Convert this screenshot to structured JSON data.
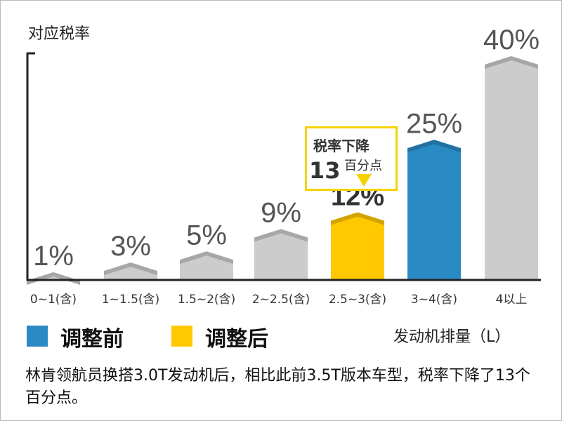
{
  "chart_data": {
    "type": "bar",
    "ylabel": "对应税率",
    "xlabel": "发动机排量（L）",
    "ylim": [
      0,
      40
    ],
    "categories": [
      "0~1(含)",
      "1~1.5(含)",
      "1.5~2(含)",
      "2~2.5(含)",
      "2.5~3(含)",
      "3~4(含)",
      "4以上"
    ],
    "values": [
      1,
      3,
      5,
      9,
      12,
      25,
      40
    ],
    "value_labels": [
      "1%",
      "3%",
      "5%",
      "9%",
      "12%",
      "25%",
      "40%"
    ],
    "legend": [
      {
        "label": "调整前",
        "color": "#2a8ac4"
      },
      {
        "label": "调整后",
        "color": "#ffc800"
      }
    ],
    "bar_colors": [
      "#cccccc",
      "#cccccc",
      "#cccccc",
      "#cccccc",
      "#ffc800",
      "#2a8ac4",
      "#cccccc"
    ],
    "annotation": {
      "line1": "税率下降",
      "number": "13",
      "unit": "百分点"
    }
  },
  "caption": "林肯领航员换搭3.0T发动机后，相比此前3.5T版本车型，税率下降了13个百分点。"
}
